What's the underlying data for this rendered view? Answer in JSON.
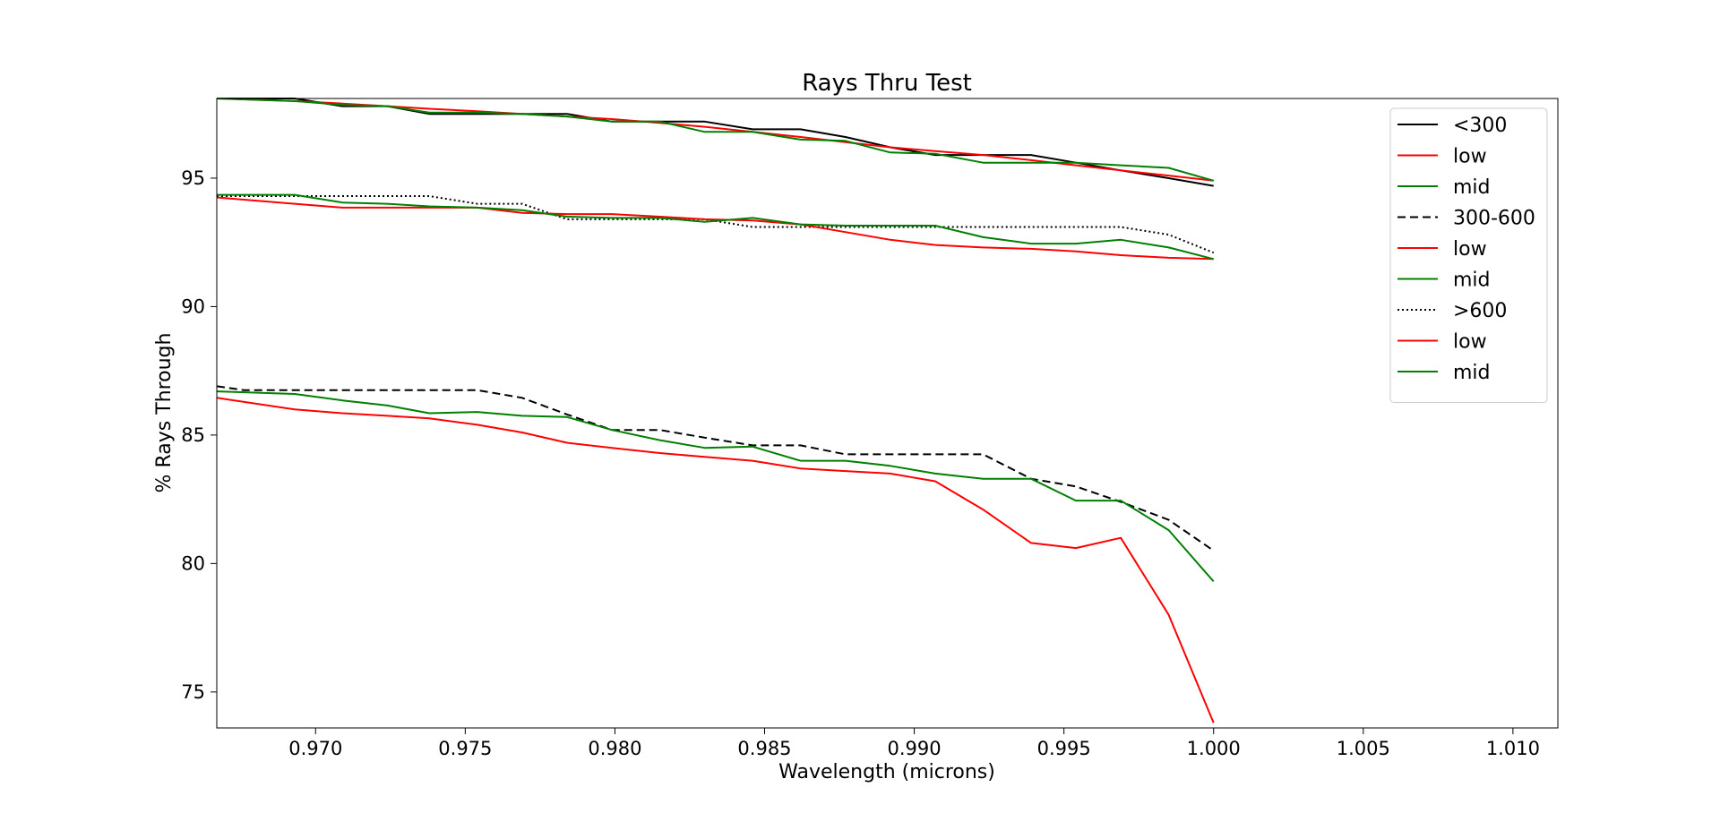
{
  "chart_data": {
    "type": "line",
    "title": "Rays Thru Test",
    "xlabel": "Wavelength (microns)",
    "ylabel": "% Rays Through",
    "xlim": [
      0.9667,
      1.0115
    ],
    "ylim": [
      73.6,
      98.1
    ],
    "grid": false,
    "legend_position": "top-right",
    "xticks": [
      "0.970",
      "0.975",
      "0.980",
      "0.985",
      "0.990",
      "0.995",
      "1.000",
      "1.005",
      "1.010"
    ],
    "yticks": [
      "75",
      "80",
      "85",
      "90",
      "95"
    ],
    "series": [
      {
        "name": "<300",
        "color": "#000000",
        "dash": "solid",
        "x": [
          0.9667,
          0.9693,
          0.9709,
          0.9724,
          0.9738,
          0.9754,
          0.9769,
          0.9784,
          0.9799,
          0.9815,
          0.983,
          0.9846,
          0.9862,
          0.9877,
          0.9892,
          0.9907,
          0.9923,
          0.9939,
          0.9954,
          0.9969,
          0.9985,
          1.0
        ],
        "y": [
          98.1,
          98.1,
          97.8,
          97.8,
          97.5,
          97.5,
          97.5,
          97.5,
          97.2,
          97.2,
          97.2,
          96.9,
          96.9,
          96.6,
          96.2,
          95.9,
          95.9,
          95.9,
          95.6,
          95.3,
          95.0,
          94.7
        ]
      },
      {
        "name": "low",
        "color": "#ff0000",
        "dash": "solid",
        "x": [
          0.9667,
          0.9693,
          0.9709,
          0.9724,
          0.9738,
          0.9754,
          0.9769,
          0.9784,
          0.9799,
          0.9815,
          0.983,
          0.9846,
          0.9862,
          0.9877,
          0.9892,
          0.9907,
          0.9923,
          0.9939,
          0.9954,
          0.9969,
          0.9985,
          1.0
        ],
        "y": [
          98.1,
          98.0,
          97.9,
          97.8,
          97.7,
          97.6,
          97.5,
          97.4,
          97.3,
          97.15,
          97.0,
          96.8,
          96.6,
          96.4,
          96.2,
          96.05,
          95.9,
          95.7,
          95.5,
          95.3,
          95.1,
          94.9
        ]
      },
      {
        "name": "mid",
        "color": "#008000",
        "dash": "solid",
        "x": [
          0.9667,
          0.9693,
          0.9709,
          0.9724,
          0.9738,
          0.9754,
          0.9769,
          0.9784,
          0.9799,
          0.9815,
          0.983,
          0.9846,
          0.9862,
          0.9877,
          0.9892,
          0.9907,
          0.9923,
          0.9939,
          0.9954,
          0.9969,
          0.9985,
          1.0
        ],
        "y": [
          98.1,
          98.0,
          97.85,
          97.8,
          97.55,
          97.55,
          97.5,
          97.4,
          97.2,
          97.2,
          96.8,
          96.8,
          96.5,
          96.45,
          96.0,
          95.95,
          95.6,
          95.6,
          95.6,
          95.5,
          95.4,
          94.9
        ]
      },
      {
        "name": "300-600",
        "color": "#000000",
        "dash": "dashed",
        "x": [
          0.9667,
          0.9676,
          0.9709,
          0.9724,
          0.9738,
          0.9754,
          0.9769,
          0.9784,
          0.9799,
          0.9815,
          0.983,
          0.9846,
          0.9862,
          0.9877,
          0.9892,
          0.9907,
          0.9923,
          0.9939,
          0.9954,
          0.9969,
          0.9985,
          1.0
        ],
        "y": [
          86.9,
          86.75,
          86.75,
          86.75,
          86.75,
          86.75,
          86.45,
          85.8,
          85.2,
          85.2,
          84.9,
          84.6,
          84.6,
          84.25,
          84.25,
          84.25,
          84.25,
          83.3,
          83.0,
          82.4,
          81.7,
          80.5
        ]
      },
      {
        "name": "low",
        "color": "#ff0000",
        "dash": "solid",
        "x": [
          0.9667,
          0.9693,
          0.9709,
          0.9724,
          0.9738,
          0.9754,
          0.9769,
          0.9784,
          0.9799,
          0.9815,
          0.983,
          0.9846,
          0.9862,
          0.9877,
          0.9892,
          0.9907,
          0.9923,
          0.9939,
          0.9954,
          0.9969,
          0.9985,
          1.0
        ],
        "y": [
          86.45,
          86.0,
          85.85,
          85.75,
          85.65,
          85.4,
          85.1,
          84.7,
          84.5,
          84.3,
          84.15,
          84.0,
          83.7,
          83.6,
          83.5,
          83.2,
          82.1,
          80.8,
          80.6,
          81.0,
          78.0,
          73.8
        ]
      },
      {
        "name": "mid",
        "color": "#008000",
        "dash": "solid",
        "x": [
          0.9667,
          0.9693,
          0.9709,
          0.9724,
          0.9738,
          0.9754,
          0.9769,
          0.9784,
          0.9799,
          0.9815,
          0.983,
          0.9846,
          0.9862,
          0.9877,
          0.9892,
          0.9907,
          0.9923,
          0.9939,
          0.9954,
          0.9969,
          0.9985,
          1.0
        ],
        "y": [
          86.7,
          86.6,
          86.35,
          86.15,
          85.85,
          85.9,
          85.75,
          85.7,
          85.2,
          84.8,
          84.5,
          84.55,
          84.0,
          84.0,
          83.8,
          83.5,
          83.3,
          83.3,
          82.45,
          82.45,
          81.3,
          79.3
        ]
      },
      {
        "name": ">600",
        "color": "#000000",
        "dash": "dotted",
        "x": [
          0.9667,
          0.9693,
          0.9709,
          0.9724,
          0.9738,
          0.9754,
          0.9769,
          0.9784,
          0.9799,
          0.9815,
          0.983,
          0.9846,
          0.9862,
          0.9877,
          0.9892,
          0.9907,
          0.9923,
          0.9939,
          0.9954,
          0.9969,
          0.9985,
          1.0
        ],
        "y": [
          94.3,
          94.3,
          94.3,
          94.3,
          94.3,
          94.0,
          94.0,
          93.4,
          93.4,
          93.4,
          93.4,
          93.1,
          93.1,
          93.1,
          93.1,
          93.1,
          93.1,
          93.1,
          93.1,
          93.1,
          92.8,
          92.1
        ]
      },
      {
        "name": "low",
        "color": "#ff0000",
        "dash": "solid",
        "x": [
          0.9667,
          0.9693,
          0.9709,
          0.9724,
          0.9738,
          0.9754,
          0.9769,
          0.9784,
          0.9799,
          0.9815,
          0.983,
          0.9846,
          0.9862,
          0.9877,
          0.9892,
          0.9907,
          0.9923,
          0.9939,
          0.9954,
          0.9969,
          0.9985,
          1.0
        ],
        "y": [
          94.25,
          94.0,
          93.85,
          93.85,
          93.85,
          93.85,
          93.65,
          93.6,
          93.6,
          93.5,
          93.4,
          93.35,
          93.2,
          92.9,
          92.6,
          92.4,
          92.3,
          92.25,
          92.15,
          92.0,
          91.9,
          91.85
        ]
      },
      {
        "name": "mid",
        "color": "#008000",
        "dash": "solid",
        "x": [
          0.9667,
          0.9693,
          0.9709,
          0.9724,
          0.9738,
          0.9754,
          0.9769,
          0.9784,
          0.9799,
          0.9815,
          0.983,
          0.9846,
          0.9862,
          0.9877,
          0.9892,
          0.9907,
          0.9923,
          0.9939,
          0.9954,
          0.9969,
          0.9985,
          1.0
        ],
        "y": [
          94.35,
          94.35,
          94.05,
          94.0,
          93.9,
          93.85,
          93.75,
          93.5,
          93.45,
          93.45,
          93.3,
          93.45,
          93.2,
          93.15,
          93.15,
          93.15,
          92.7,
          92.45,
          92.45,
          92.6,
          92.3,
          91.85
        ]
      }
    ]
  }
}
